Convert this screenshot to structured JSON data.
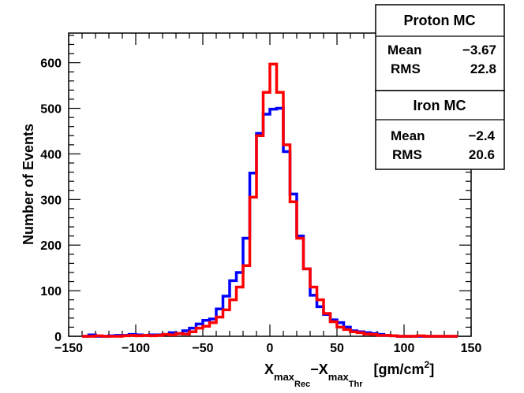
{
  "chart_data": {
    "type": "histogram",
    "title": "",
    "xlabel": {
      "parts": [
        "X",
        "max",
        "Rec",
        "−X",
        "max",
        "Thr",
        "[gm/cm",
        "2",
        "]"
      ]
    },
    "ylabel": "Number of Events",
    "xlim": [
      -150,
      150
    ],
    "ylim": [
      0,
      665
    ],
    "x_ticks": [
      -150,
      -100,
      -50,
      0,
      50,
      100,
      150
    ],
    "x_tick_labels": [
      "−150",
      "−100",
      "−50",
      "0",
      "50",
      "100",
      "150"
    ],
    "y_ticks": [
      0,
      100,
      200,
      300,
      400,
      500,
      600
    ],
    "y_tick_labels": [
      "0",
      "100",
      "200",
      "300",
      "400",
      "500",
      "600"
    ],
    "bin_edges": [
      -140,
      -135,
      -130,
      -125,
      -120,
      -115,
      -110,
      -105,
      -100,
      -95,
      -90,
      -85,
      -80,
      -75,
      -70,
      -65,
      -60,
      -55,
      -50,
      -45,
      -40,
      -35,
      -30,
      -25,
      -20,
      -15,
      -10,
      -5,
      0,
      5,
      10,
      15,
      20,
      25,
      30,
      35,
      40,
      45,
      50,
      55,
      60,
      65,
      70,
      75,
      80,
      85,
      90,
      95,
      100,
      105,
      110,
      115,
      120,
      125,
      130,
      135,
      140
    ],
    "series": [
      {
        "name": "Proton MC",
        "color": "#0000ff",
        "counts": [
          0,
          3,
          0,
          0,
          1,
          2,
          2,
          4,
          3,
          2,
          3,
          3,
          4,
          8,
          6,
          12,
          18,
          27,
          35,
          38,
          60,
          88,
          122,
          140,
          215,
          358,
          445,
          487,
          498,
          500,
          405,
          312,
          220,
          148,
          90,
          65,
          48,
          36,
          30,
          20,
          12,
          10,
          8,
          6,
          4,
          2,
          1,
          0,
          0,
          0,
          0,
          0,
          0,
          0,
          0,
          0
        ]
      },
      {
        "name": "Iron MC",
        "color": "#ff0000",
        "counts": [
          0,
          0,
          1,
          0,
          0,
          0,
          1,
          2,
          1,
          2,
          1,
          2,
          4,
          3,
          6,
          5,
          10,
          18,
          22,
          30,
          42,
          58,
          80,
          108,
          155,
          305,
          440,
          535,
          597,
          535,
          420,
          295,
          215,
          148,
          108,
          80,
          50,
          32,
          20,
          15,
          10,
          8,
          5,
          4,
          2,
          2,
          1,
          0,
          0,
          0,
          1,
          0,
          0,
          0,
          0,
          0
        ]
      }
    ]
  },
  "stats": {
    "proton": {
      "title": "Proton MC",
      "mean_label": "Mean",
      "mean": "−3.67",
      "rms_label": "RMS",
      "rms": "22.8"
    },
    "iron": {
      "title": "Iron MC",
      "mean_label": "Mean",
      "mean": "−2.4",
      "rms_label": "RMS",
      "rms": "20.6"
    }
  }
}
